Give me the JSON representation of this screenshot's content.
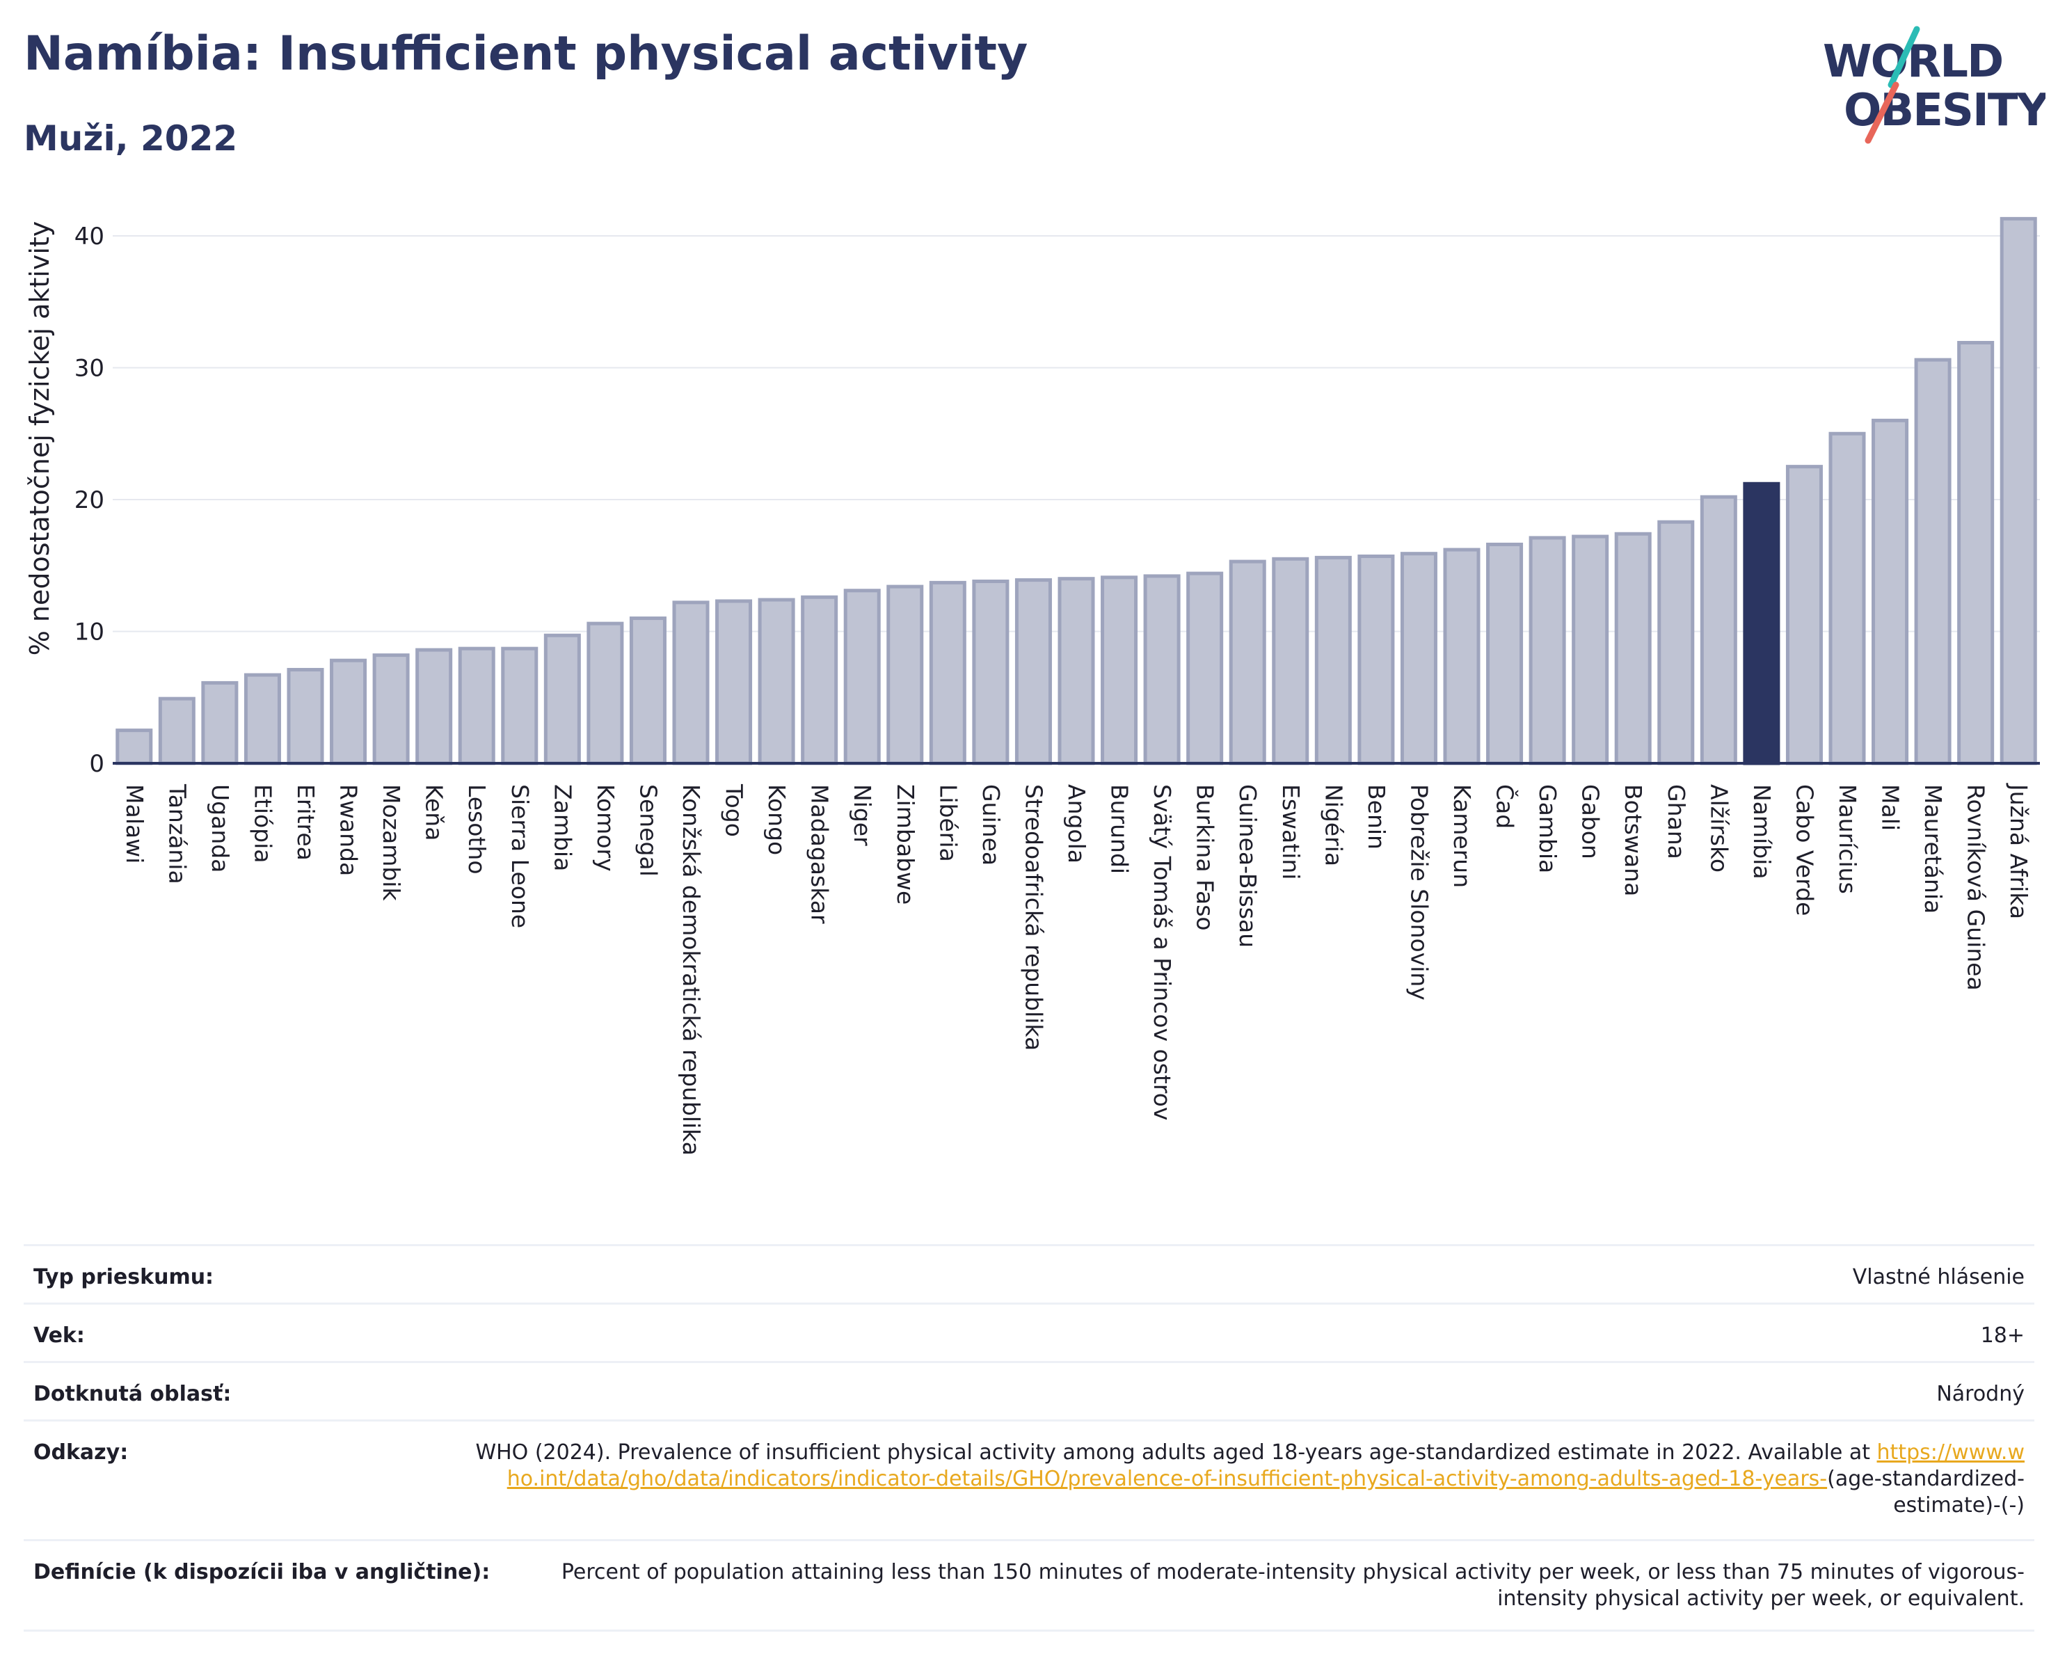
{
  "header": {
    "title": "Namíbia: Insufficient physical activity",
    "subtitle": "Muži, 2022"
  },
  "logo": {
    "line1": "WORLD",
    "line2": "OBESITY",
    "accent_colors": [
      "#2bbcb5",
      "#e8665a"
    ]
  },
  "colors": {
    "bar": "#bfc3d3",
    "bar_border": "#9ea4bd",
    "highlight": "#2b3561",
    "axis": "#2b3561",
    "grid": "#e6e8ef"
  },
  "chart_data": {
    "type": "bar",
    "title": "Namíbia: Insufficient physical activity",
    "subtitle": "Muži, 2022",
    "ylabel": "% nedostatočnej fyzickej aktivity",
    "xlabel": "",
    "ylim": [
      0,
      42
    ],
    "yticks": [
      0,
      10,
      20,
      30,
      40
    ],
    "grid": true,
    "highlight": "Namíbia",
    "categories": [
      "Malawi",
      "Tanzánia",
      "Uganda",
      "Etiópia",
      "Eritrea",
      "Rwanda",
      "Mozambik",
      "Keňa",
      "Lesotho",
      "Sierra Leone",
      "Zambia",
      "Komory",
      "Senegal",
      "Konžská demokratická republika",
      "Togo",
      "Kongo",
      "Madagaskar",
      "Niger",
      "Zimbabwe",
      "Libéria",
      "Guinea",
      "Stredoafrická republika",
      "Angola",
      "Burundi",
      "Svätý Tomáš a Princov ostrov",
      "Burkina Faso",
      "Guinea-Bissau",
      "Eswatini",
      "Nigéria",
      "Benin",
      "Pobrežie Slonoviny",
      "Kamerun",
      "Čad",
      "Gambia",
      "Gabon",
      "Botswana",
      "Ghana",
      "Alžírsko",
      "Namíbia",
      "Cabo Verde",
      "Maurícius",
      "Mali",
      "Mauretánia",
      "Rovníková Guinea",
      "Južná Afrika"
    ],
    "values": [
      2.5,
      4.9,
      6.1,
      6.7,
      7.1,
      7.8,
      8.2,
      8.6,
      8.7,
      8.7,
      9.7,
      10.6,
      11.0,
      12.2,
      12.3,
      12.4,
      12.6,
      13.1,
      13.4,
      13.7,
      13.8,
      13.9,
      14.0,
      14.1,
      14.2,
      14.4,
      15.3,
      15.5,
      15.6,
      15.7,
      15.9,
      16.2,
      16.6,
      17.1,
      17.2,
      17.4,
      18.3,
      20.2,
      21.2,
      22.5,
      25.0,
      26.0,
      30.6,
      31.9,
      41.3
    ]
  },
  "meta": {
    "survey_type_label": "Typ prieskumu:",
    "survey_type_value": "Vlastné hlásenie",
    "age_label": "Vek:",
    "age_value": "18+",
    "area_label": "Dotknutá oblasť:",
    "area_value": "Národný",
    "refs_label": "Odkazy:",
    "refs_text": "WHO (2024). Prevalence of insufficient physical activity among adults aged 18-years age-standardized estimate in 2022. Available at",
    "refs_link": "https://www.who.int/data/gho/data/indicators/indicator-details/GHO/prevalence-of-insufficient-physical-activity-among-adults-aged-18-years-",
    "refs_suffix": "(age-standardized-estimate)-(-)",
    "definitions_label": "Definície (k dispozícii iba v angličtine):",
    "definitions_value": "Percent of population attaining less than 150 minutes of moderate-intensity physical activity per week, or less than 75 minutes of vigorous-intensity physical activity per week, or equivalent."
  }
}
